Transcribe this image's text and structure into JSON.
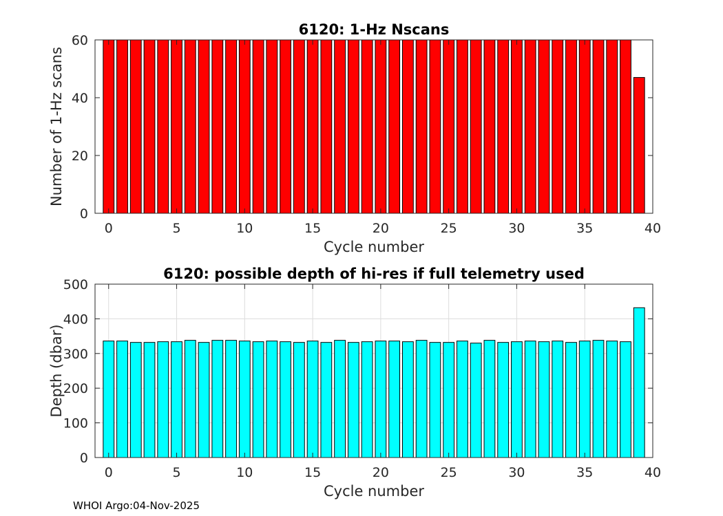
{
  "chart_data": [
    {
      "type": "bar",
      "title": "6120: 1-Hz Nscans",
      "xlabel": "Cycle number",
      "ylabel": "Number of 1-Hz scans",
      "x": [
        0,
        1,
        2,
        3,
        4,
        5,
        6,
        7,
        8,
        9,
        10,
        11,
        12,
        13,
        14,
        15,
        16,
        17,
        18,
        19,
        20,
        21,
        22,
        23,
        24,
        25,
        26,
        27,
        28,
        29,
        30,
        31,
        32,
        33,
        34,
        35,
        36,
        37,
        38,
        39
      ],
      "values": [
        60,
        60,
        60,
        60,
        60,
        60,
        60,
        60,
        60,
        60,
        60,
        60,
        60,
        60,
        60,
        60,
        60,
        60,
        60,
        60,
        60,
        60,
        60,
        60,
        60,
        60,
        60,
        60,
        60,
        60,
        60,
        60,
        60,
        60,
        60,
        60,
        60,
        60,
        60,
        47
      ],
      "xlim": [
        -1,
        40
      ],
      "ylim": [
        0,
        60
      ],
      "xticks": [
        0,
        5,
        10,
        15,
        20,
        25,
        30,
        35,
        40
      ],
      "yticks": [
        0,
        20,
        40,
        60
      ],
      "grid": false,
      "bar_color": "#ff0000"
    },
    {
      "type": "bar",
      "title": "6120: possible depth of hi-res if full telemetry used",
      "xlabel": "Cycle number",
      "ylabel": "Depth (dbar)",
      "x": [
        0,
        1,
        2,
        3,
        4,
        5,
        6,
        7,
        8,
        9,
        10,
        11,
        12,
        13,
        14,
        15,
        16,
        17,
        18,
        19,
        20,
        21,
        22,
        23,
        24,
        25,
        26,
        27,
        28,
        29,
        30,
        31,
        32,
        33,
        34,
        35,
        36,
        37,
        38,
        39
      ],
      "values": [
        336,
        336,
        332,
        332,
        334,
        334,
        338,
        332,
        338,
        338,
        336,
        334,
        336,
        334,
        332,
        336,
        332,
        338,
        332,
        334,
        336,
        336,
        334,
        338,
        332,
        332,
        336,
        330,
        338,
        332,
        334,
        336,
        334,
        336,
        332,
        336,
        338,
        336,
        334,
        432
      ],
      "xlim": [
        -1,
        40
      ],
      "ylim": [
        0,
        500
      ],
      "xticks": [
        0,
        5,
        10,
        15,
        20,
        25,
        30,
        35,
        40
      ],
      "yticks": [
        0,
        100,
        200,
        300,
        400,
        500
      ],
      "grid": true,
      "bar_color": "#00ffff"
    }
  ],
  "footer": {
    "text": "WHOI Argo:04-Nov-2025"
  }
}
